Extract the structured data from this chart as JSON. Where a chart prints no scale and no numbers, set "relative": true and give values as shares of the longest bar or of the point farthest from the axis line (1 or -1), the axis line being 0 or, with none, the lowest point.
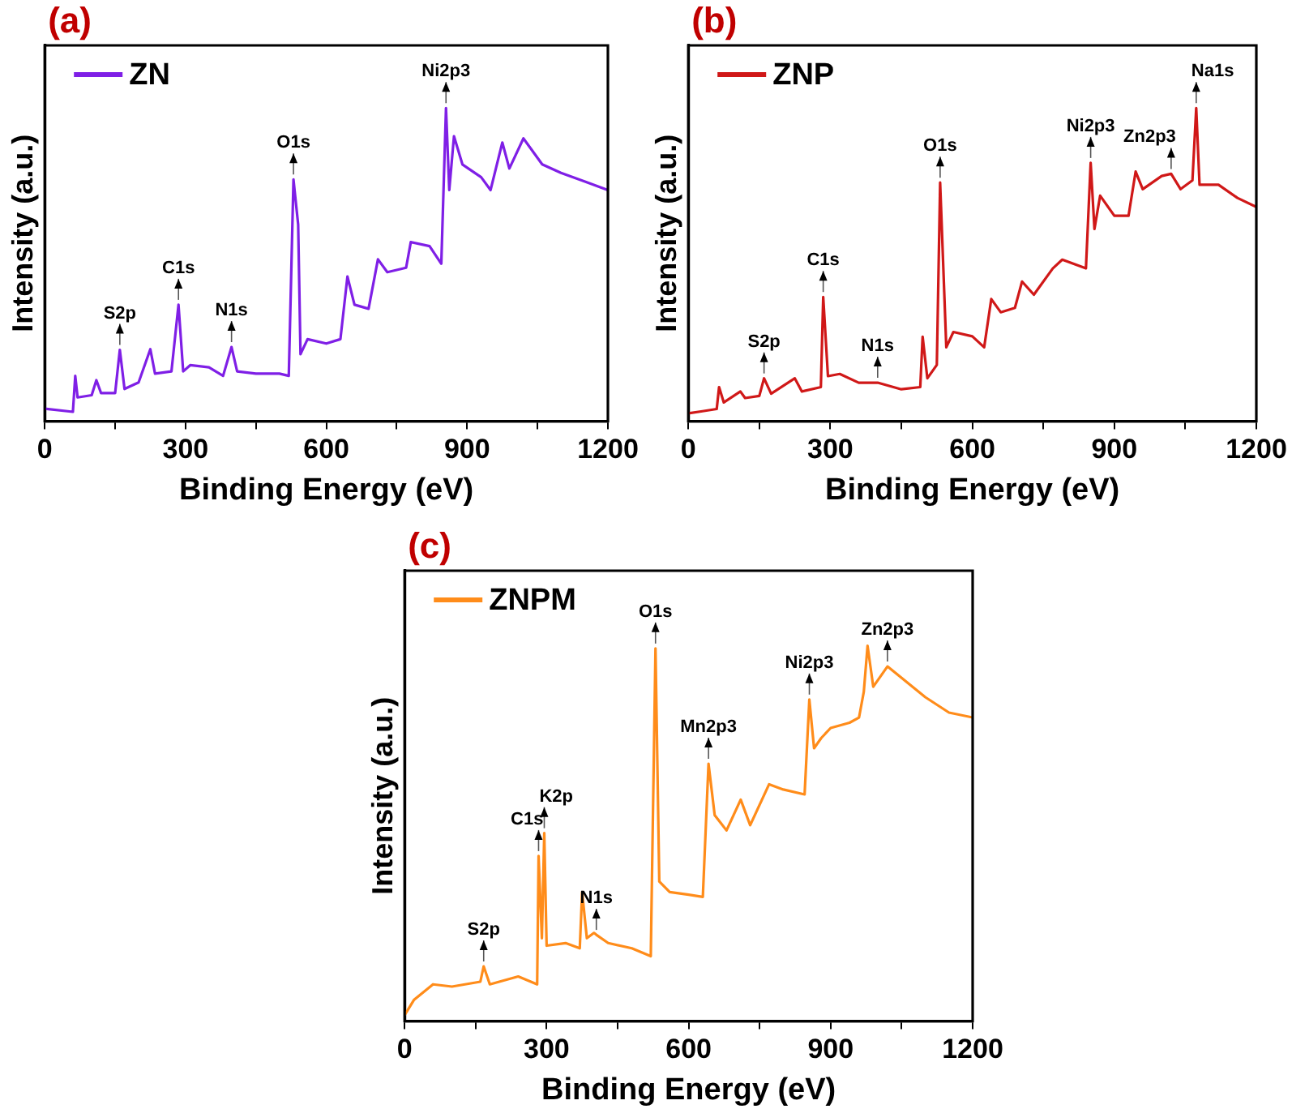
{
  "chart_data": [
    {
      "type": "line",
      "title": "(a)",
      "xlabel": "Binding Energy (eV)",
      "ylabel": "Intensity (a.u.)",
      "relative": true,
      "legend": "top left",
      "xlim": [
        0,
        1200
      ],
      "xticks": [
        0,
        {
          "value": 150,
          "label": null
        },
        300,
        {
          "value": 450,
          "label": null
        },
        600,
        {
          "value": 750,
          "label": null
        },
        900,
        {
          "value": 1050,
          "label": null
        },
        1200
      ],
      "series": [
        {
          "name": "ZN",
          "color": "#7f1fe6",
          "x": [
            0,
            60,
            65,
            70,
            100,
            110,
            120,
            150,
            160,
            170,
            200,
            225,
            235,
            270,
            285,
            295,
            310,
            350,
            380,
            398,
            410,
            450,
            500,
            520,
            530,
            540,
            545,
            560,
            600,
            630,
            645,
            660,
            690,
            710,
            730,
            770,
            780,
            820,
            845,
            855,
            862,
            872,
            890,
            930,
            950,
            975,
            990,
            1020,
            1060,
            1100,
            1150,
            1200
          ],
          "values": [
            0.04,
            0.03,
            0.145,
            0.076,
            0.083,
            0.131,
            0.09,
            0.09,
            0.228,
            0.103,
            0.124,
            0.23,
            0.152,
            0.159,
            0.372,
            0.159,
            0.179,
            0.172,
            0.145,
            0.237,
            0.159,
            0.152,
            0.152,
            0.145,
            0.772,
            0.628,
            0.214,
            0.262,
            0.248,
            0.262,
            0.462,
            0.372,
            0.359,
            0.517,
            0.476,
            0.49,
            0.572,
            0.559,
            0.503,
            1.0,
            0.738,
            0.91,
            0.82,
            0.779,
            0.738,
            0.89,
            0.807,
            0.903,
            0.82,
            0.793,
            0.766,
            0.738
          ]
        }
      ],
      "annotations": [
        {
          "text": "S2p",
          "x": 160,
          "y": 0.228
        },
        {
          "text": "C1s",
          "x": 285,
          "y": 0.372
        },
        {
          "text": "N1s",
          "x": 398,
          "y": 0.237
        },
        {
          "text": "O1s",
          "x": 530,
          "y": 0.772
        },
        {
          "text": "Ni2p3",
          "x": 855,
          "y": 1.0
        }
      ]
    },
    {
      "type": "line",
      "title": "(b)",
      "xlabel": "Binding Energy (eV)",
      "ylabel": "Intensity (a.u.)",
      "relative": true,
      "legend": "top left",
      "xlim": [
        0,
        1200
      ],
      "xticks": [
        0,
        {
          "value": 150,
          "label": null
        },
        300,
        {
          "value": 450,
          "label": null
        },
        600,
        {
          "value": 750,
          "label": null
        },
        900,
        {
          "value": 1050,
          "label": null
        },
        1200
      ],
      "series": [
        {
          "name": "ZNP",
          "color": "#d01818",
          "x": [
            0,
            30,
            60,
            65,
            75,
            110,
            120,
            150,
            160,
            175,
            225,
            240,
            280,
            285,
            295,
            320,
            360,
            400,
            450,
            490,
            495,
            505,
            525,
            532,
            545,
            560,
            600,
            625,
            640,
            660,
            690,
            705,
            730,
            770,
            790,
            840,
            850,
            858,
            870,
            900,
            930,
            945,
            960,
            1000,
            1020,
            1040,
            1065,
            1073,
            1080,
            1120,
            1160,
            1200
          ],
          "values": [
            0.025,
            0.032,
            0.039,
            0.109,
            0.06,
            0.095,
            0.074,
            0.081,
            0.137,
            0.088,
            0.137,
            0.095,
            0.109,
            0.397,
            0.144,
            0.151,
            0.123,
            0.123,
            0.102,
            0.109,
            0.27,
            0.137,
            0.18,
            0.762,
            0.236,
            0.285,
            0.271,
            0.236,
            0.39,
            0.348,
            0.362,
            0.446,
            0.404,
            0.488,
            0.516,
            0.488,
            0.825,
            0.614,
            0.72,
            0.656,
            0.656,
            0.797,
            0.741,
            0.783,
            0.79,
            0.741,
            0.769,
            1.0,
            0.755,
            0.755,
            0.713,
            0.684
          ]
        }
      ],
      "annotations": [
        {
          "text": "S2p",
          "x": 160,
          "y": 0.137
        },
        {
          "text": "C1s",
          "x": 285,
          "y": 0.397
        },
        {
          "text": "N1s",
          "x": 400,
          "y": 0.123
        },
        {
          "text": "O1s",
          "x": 532,
          "y": 0.762
        },
        {
          "text": "Ni2p3",
          "x": 850,
          "y": 0.825
        },
        {
          "text": "Zn2p3",
          "x": 1020,
          "y": 0.79
        },
        {
          "text": "Na1s",
          "x": 1073,
          "y": 1.0
        }
      ]
    },
    {
      "type": "line",
      "title": "(c)",
      "xlabel": "Binding Energy (eV)",
      "ylabel": "Intensity (a.u.)",
      "relative": true,
      "legend": "top left",
      "xlim": [
        0,
        1200
      ],
      "xticks": [
        0,
        {
          "value": 150,
          "label": null
        },
        300,
        {
          "value": 450,
          "label": null
        },
        600,
        {
          "value": 750,
          "label": null
        },
        900,
        {
          "value": 1050,
          "label": null
        },
        1200
      ],
      "series": [
        {
          "name": "ZNPM",
          "color": "#ff8c1a",
          "x": [
            0,
            20,
            60,
            100,
            160,
            167,
            180,
            240,
            280,
            283,
            290,
            295,
            300,
            340,
            370,
            375,
            385,
            400,
            405,
            430,
            480,
            520,
            530,
            538,
            560,
            600,
            630,
            642,
            655,
            680,
            710,
            730,
            770,
            800,
            845,
            855,
            865,
            880,
            900,
            940,
            960,
            970,
            978,
            990,
            1020,
            1060,
            1100,
            1150,
            1200
          ],
          "values": [
            0.016,
            0.057,
            0.098,
            0.092,
            0.105,
            0.146,
            0.098,
            0.119,
            0.098,
            0.44,
            0.221,
            0.501,
            0.201,
            0.208,
            0.194,
            0.344,
            0.221,
            0.235,
            0.23,
            0.208,
            0.194,
            0.173,
            0.993,
            0.372,
            0.344,
            0.337,
            0.331,
            0.686,
            0.549,
            0.508,
            0.59,
            0.522,
            0.631,
            0.617,
            0.604,
            0.857,
            0.727,
            0.754,
            0.781,
            0.795,
            0.809,
            0.877,
            1.0,
            0.891,
            0.945,
            0.904,
            0.863,
            0.822,
            0.809
          ]
        }
      ],
      "annotations": [
        {
          "text": "S2p",
          "x": 167,
          "y": 0.146
        },
        {
          "text": "C1s",
          "x": 283,
          "y": 0.44
        },
        {
          "text": "K2p",
          "x": 295,
          "y": 0.501
        },
        {
          "text": "N1s",
          "x": 405,
          "y": 0.23
        },
        {
          "text": "O1s",
          "x": 530,
          "y": 0.993
        },
        {
          "text": "Mn2p3",
          "x": 642,
          "y": 0.686
        },
        {
          "text": "Ni2p3",
          "x": 855,
          "y": 0.857
        },
        {
          "text": "Zn2p3",
          "x": 1020,
          "y": 0.945
        }
      ]
    }
  ]
}
